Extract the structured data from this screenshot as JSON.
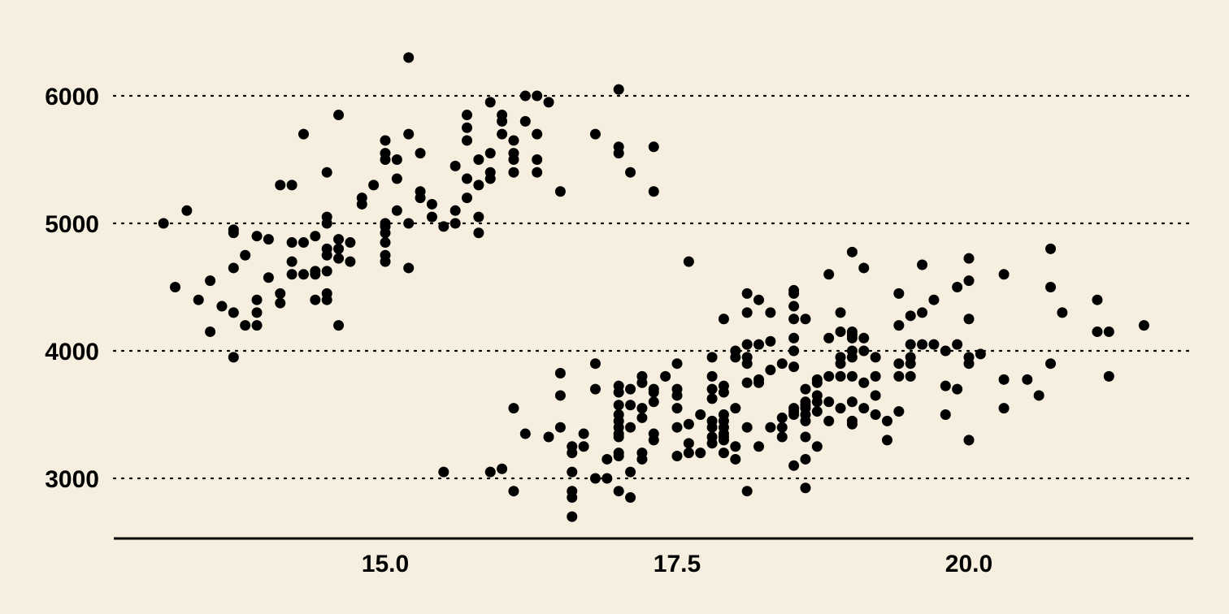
{
  "chart_data": {
    "type": "scatter",
    "title": "",
    "xlabel": "",
    "ylabel": "",
    "xlim": [
      12.9,
      21.8
    ],
    "ylim": [
      2550,
      6600
    ],
    "x_ticks": [
      15.0,
      17.5,
      20.0
    ],
    "x_tick_labels": [
      "15.0",
      "17.5",
      "20.0"
    ],
    "y_ticks": [
      3000,
      4000,
      5000,
      6000
    ],
    "y_tick_labels": [
      "3000",
      "4000",
      "5000",
      "6000"
    ],
    "grid": "horizontal-dotted",
    "legend": "none",
    "point_color": "#000000",
    "background_color": "#f6efdf",
    "series": [
      {
        "points": [
          [
            13.1,
            5000
          ],
          [
            13.2,
            4500
          ],
          [
            13.3,
            5100
          ],
          [
            13.4,
            4400
          ],
          [
            13.5,
            4550
          ],
          [
            13.5,
            4150
          ],
          [
            13.6,
            4350
          ],
          [
            13.7,
            4950
          ],
          [
            13.7,
            4300
          ],
          [
            13.7,
            3950
          ],
          [
            13.7,
            4650
          ],
          [
            13.7,
            4925
          ],
          [
            13.8,
            4750
          ],
          [
            13.8,
            4200
          ],
          [
            13.9,
            4900
          ],
          [
            13.9,
            4400
          ],
          [
            13.9,
            4300
          ],
          [
            13.9,
            4200
          ],
          [
            14.0,
            4875
          ],
          [
            14.0,
            4575
          ],
          [
            14.1,
            4450
          ],
          [
            14.1,
            4375
          ],
          [
            14.1,
            5300
          ],
          [
            14.2,
            5300
          ],
          [
            14.2,
            4850
          ],
          [
            14.2,
            4700
          ],
          [
            14.2,
            4600
          ],
          [
            14.3,
            4850
          ],
          [
            14.3,
            4600
          ],
          [
            14.3,
            5700
          ],
          [
            14.4,
            4900
          ],
          [
            14.4,
            4600
          ],
          [
            14.4,
            4625
          ],
          [
            14.4,
            4400
          ],
          [
            14.5,
            5400
          ],
          [
            14.5,
            5050
          ],
          [
            14.5,
            5000
          ],
          [
            14.5,
            4800
          ],
          [
            14.5,
            4750
          ],
          [
            14.5,
            4625
          ],
          [
            14.5,
            4450
          ],
          [
            14.5,
            4400
          ],
          [
            14.6,
            5850
          ],
          [
            14.6,
            4875
          ],
          [
            14.6,
            4800
          ],
          [
            14.6,
            4725
          ],
          [
            14.6,
            4200
          ],
          [
            14.7,
            4850
          ],
          [
            14.7,
            4700
          ],
          [
            14.8,
            5200
          ],
          [
            14.8,
            5150
          ],
          [
            14.9,
            5300
          ],
          [
            15.0,
            5650
          ],
          [
            15.0,
            5550
          ],
          [
            15.0,
            5500
          ],
          [
            15.0,
            5000
          ],
          [
            15.0,
            4975
          ],
          [
            15.0,
            4850
          ],
          [
            15.0,
            4750
          ],
          [
            15.0,
            4700
          ],
          [
            15.0,
            4925
          ],
          [
            15.1,
            5500
          ],
          [
            15.1,
            5350
          ],
          [
            15.1,
            5100
          ],
          [
            15.2,
            6300
          ],
          [
            15.2,
            5700
          ],
          [
            15.2,
            5000
          ],
          [
            15.2,
            4650
          ],
          [
            15.3,
            5550
          ],
          [
            15.3,
            5250
          ],
          [
            15.3,
            5200
          ],
          [
            15.4,
            5150
          ],
          [
            15.4,
            5050
          ],
          [
            15.5,
            4975
          ],
          [
            15.5,
            3050
          ],
          [
            15.6,
            5450
          ],
          [
            15.6,
            5100
          ],
          [
            15.6,
            5000
          ],
          [
            15.7,
            5850
          ],
          [
            15.7,
            5750
          ],
          [
            15.7,
            5650
          ],
          [
            15.7,
            5350
          ],
          [
            15.7,
            5200
          ],
          [
            15.8,
            5500
          ],
          [
            15.8,
            5300
          ],
          [
            15.8,
            5050
          ],
          [
            15.8,
            4925
          ],
          [
            15.9,
            5950
          ],
          [
            15.9,
            5550
          ],
          [
            15.9,
            5400
          ],
          [
            15.9,
            5350
          ],
          [
            15.9,
            3050
          ],
          [
            16.0,
            5850
          ],
          [
            16.0,
            5800
          ],
          [
            16.0,
            5700
          ],
          [
            16.0,
            3075
          ],
          [
            16.1,
            5650
          ],
          [
            16.1,
            5550
          ],
          [
            16.1,
            5500
          ],
          [
            16.1,
            5400
          ],
          [
            16.1,
            3550
          ],
          [
            16.1,
            2900
          ],
          [
            16.2,
            6000
          ],
          [
            16.2,
            5800
          ],
          [
            16.2,
            3350
          ],
          [
            16.3,
            6000
          ],
          [
            16.3,
            5700
          ],
          [
            16.3,
            5500
          ],
          [
            16.3,
            5400
          ],
          [
            16.4,
            5950
          ],
          [
            16.4,
            3325
          ],
          [
            16.5,
            5250
          ],
          [
            16.5,
            3825
          ],
          [
            16.5,
            3650
          ],
          [
            16.5,
            3400
          ],
          [
            16.6,
            3250
          ],
          [
            16.6,
            3200
          ],
          [
            16.6,
            3050
          ],
          [
            16.6,
            2900
          ],
          [
            16.6,
            2850
          ],
          [
            16.6,
            2700
          ],
          [
            16.7,
            3350
          ],
          [
            16.7,
            3250
          ],
          [
            16.8,
            5700
          ],
          [
            16.8,
            3900
          ],
          [
            16.8,
            3700
          ],
          [
            16.8,
            3000
          ],
          [
            16.9,
            3150
          ],
          [
            16.9,
            3000
          ],
          [
            17.0,
            6050
          ],
          [
            17.0,
            5600
          ],
          [
            17.0,
            5550
          ],
          [
            17.0,
            3725
          ],
          [
            17.0,
            3675
          ],
          [
            17.0,
            3575
          ],
          [
            17.0,
            3500
          ],
          [
            17.0,
            3450
          ],
          [
            17.0,
            3400
          ],
          [
            17.0,
            3350
          ],
          [
            17.0,
            3325
          ],
          [
            17.0,
            3200
          ],
          [
            17.0,
            3175
          ],
          [
            17.0,
            2900
          ],
          [
            17.1,
            5400
          ],
          [
            17.1,
            3700
          ],
          [
            17.1,
            3575
          ],
          [
            17.1,
            3400
          ],
          [
            17.1,
            3050
          ],
          [
            17.1,
            2850
          ],
          [
            17.2,
            3800
          ],
          [
            17.2,
            3750
          ],
          [
            17.2,
            3550
          ],
          [
            17.2,
            3475
          ],
          [
            17.2,
            3200
          ],
          [
            17.2,
            3150
          ],
          [
            17.3,
            5600
          ],
          [
            17.3,
            5250
          ],
          [
            17.3,
            3700
          ],
          [
            17.3,
            3675
          ],
          [
            17.3,
            3600
          ],
          [
            17.3,
            3350
          ],
          [
            17.3,
            3300
          ],
          [
            17.4,
            3800
          ],
          [
            17.5,
            3900
          ],
          [
            17.5,
            3700
          ],
          [
            17.5,
            3650
          ],
          [
            17.5,
            3550
          ],
          [
            17.5,
            3400
          ],
          [
            17.5,
            3175
          ],
          [
            17.6,
            4700
          ],
          [
            17.6,
            3425
          ],
          [
            17.6,
            3275
          ],
          [
            17.6,
            3200
          ],
          [
            17.7,
            3500
          ],
          [
            17.7,
            3200
          ],
          [
            17.8,
            3950
          ],
          [
            17.8,
            3800
          ],
          [
            17.8,
            3700
          ],
          [
            17.8,
            3625
          ],
          [
            17.8,
            3450
          ],
          [
            17.8,
            3400
          ],
          [
            17.8,
            3325
          ],
          [
            17.8,
            3275
          ],
          [
            17.9,
            4250
          ],
          [
            17.9,
            3725
          ],
          [
            17.9,
            3675
          ],
          [
            17.9,
            3500
          ],
          [
            17.9,
            3450
          ],
          [
            17.9,
            3400
          ],
          [
            17.9,
            3350
          ],
          [
            17.9,
            3325
          ],
          [
            17.9,
            3300
          ],
          [
            17.9,
            3200
          ],
          [
            18.0,
            4000
          ],
          [
            18.0,
            3950
          ],
          [
            18.0,
            3550
          ],
          [
            18.0,
            3250
          ],
          [
            18.0,
            3150
          ],
          [
            18.1,
            4450
          ],
          [
            18.1,
            4300
          ],
          [
            18.1,
            4050
          ],
          [
            18.1,
            3950
          ],
          [
            18.1,
            3900
          ],
          [
            18.1,
            3750
          ],
          [
            18.1,
            3400
          ],
          [
            18.1,
            2900
          ],
          [
            18.2,
            4400
          ],
          [
            18.2,
            4050
          ],
          [
            18.2,
            3775
          ],
          [
            18.2,
            3750
          ],
          [
            18.2,
            3250
          ],
          [
            18.3,
            4300
          ],
          [
            18.3,
            4075
          ],
          [
            18.3,
            3850
          ],
          [
            18.3,
            3400
          ],
          [
            18.4,
            3900
          ],
          [
            18.4,
            3475
          ],
          [
            18.4,
            3400
          ],
          [
            18.4,
            3325
          ],
          [
            18.5,
            4475
          ],
          [
            18.5,
            4450
          ],
          [
            18.5,
            4350
          ],
          [
            18.5,
            4250
          ],
          [
            18.5,
            4100
          ],
          [
            18.5,
            4000
          ],
          [
            18.5,
            3875
          ],
          [
            18.5,
            3550
          ],
          [
            18.5,
            3525
          ],
          [
            18.5,
            3500
          ],
          [
            18.5,
            3100
          ],
          [
            18.6,
            4250
          ],
          [
            18.6,
            3700
          ],
          [
            18.6,
            3600
          ],
          [
            18.6,
            3575
          ],
          [
            18.6,
            3550
          ],
          [
            18.6,
            3500
          ],
          [
            18.6,
            3450
          ],
          [
            18.6,
            3325
          ],
          [
            18.6,
            3150
          ],
          [
            18.6,
            2925
          ],
          [
            18.7,
            3775
          ],
          [
            18.7,
            3750
          ],
          [
            18.7,
            3650
          ],
          [
            18.7,
            3600
          ],
          [
            18.7,
            3525
          ],
          [
            18.7,
            3250
          ],
          [
            18.8,
            4600
          ],
          [
            18.8,
            4100
          ],
          [
            18.8,
            3800
          ],
          [
            18.8,
            3600
          ],
          [
            18.8,
            3450
          ],
          [
            18.9,
            4300
          ],
          [
            18.9,
            4150
          ],
          [
            18.9,
            3950
          ],
          [
            18.9,
            3900
          ],
          [
            18.9,
            3800
          ],
          [
            18.9,
            3550
          ],
          [
            19.0,
            4775
          ],
          [
            19.0,
            4150
          ],
          [
            19.0,
            4125
          ],
          [
            19.0,
            4100
          ],
          [
            19.0,
            4000
          ],
          [
            19.0,
            3950
          ],
          [
            19.0,
            3800
          ],
          [
            19.0,
            3600
          ],
          [
            19.0,
            3450
          ],
          [
            19.0,
            3425
          ],
          [
            19.1,
            4650
          ],
          [
            19.1,
            4100
          ],
          [
            19.1,
            4000
          ],
          [
            19.1,
            3750
          ],
          [
            19.1,
            3550
          ],
          [
            19.2,
            3950
          ],
          [
            19.2,
            3800
          ],
          [
            19.2,
            3650
          ],
          [
            19.2,
            3500
          ],
          [
            19.3,
            3450
          ],
          [
            19.3,
            3300
          ],
          [
            19.4,
            4450
          ],
          [
            19.4,
            4200
          ],
          [
            19.4,
            3900
          ],
          [
            19.4,
            3800
          ],
          [
            19.4,
            3525
          ],
          [
            19.5,
            4275
          ],
          [
            19.5,
            4050
          ],
          [
            19.5,
            3950
          ],
          [
            19.5,
            3900
          ],
          [
            19.5,
            3800
          ],
          [
            19.6,
            4675
          ],
          [
            19.6,
            4300
          ],
          [
            19.6,
            4050
          ],
          [
            19.7,
            4400
          ],
          [
            19.7,
            4050
          ],
          [
            19.8,
            4000
          ],
          [
            19.8,
            3725
          ],
          [
            19.8,
            3500
          ],
          [
            19.9,
            4500
          ],
          [
            19.9,
            4050
          ],
          [
            19.9,
            3700
          ],
          [
            20.0,
            4725
          ],
          [
            20.0,
            4550
          ],
          [
            20.0,
            4250
          ],
          [
            20.0,
            3950
          ],
          [
            20.0,
            3900
          ],
          [
            20.0,
            3300
          ],
          [
            20.1,
            3975
          ],
          [
            20.3,
            4600
          ],
          [
            20.3,
            3775
          ],
          [
            20.3,
            3550
          ],
          [
            20.5,
            3775
          ],
          [
            20.6,
            3650
          ],
          [
            20.7,
            4800
          ],
          [
            20.7,
            4500
          ],
          [
            20.7,
            3900
          ],
          [
            20.8,
            4300
          ],
          [
            21.1,
            4400
          ],
          [
            21.1,
            4150
          ],
          [
            21.2,
            4150
          ],
          [
            21.2,
            3800
          ],
          [
            21.5,
            4200
          ]
        ]
      }
    ]
  }
}
